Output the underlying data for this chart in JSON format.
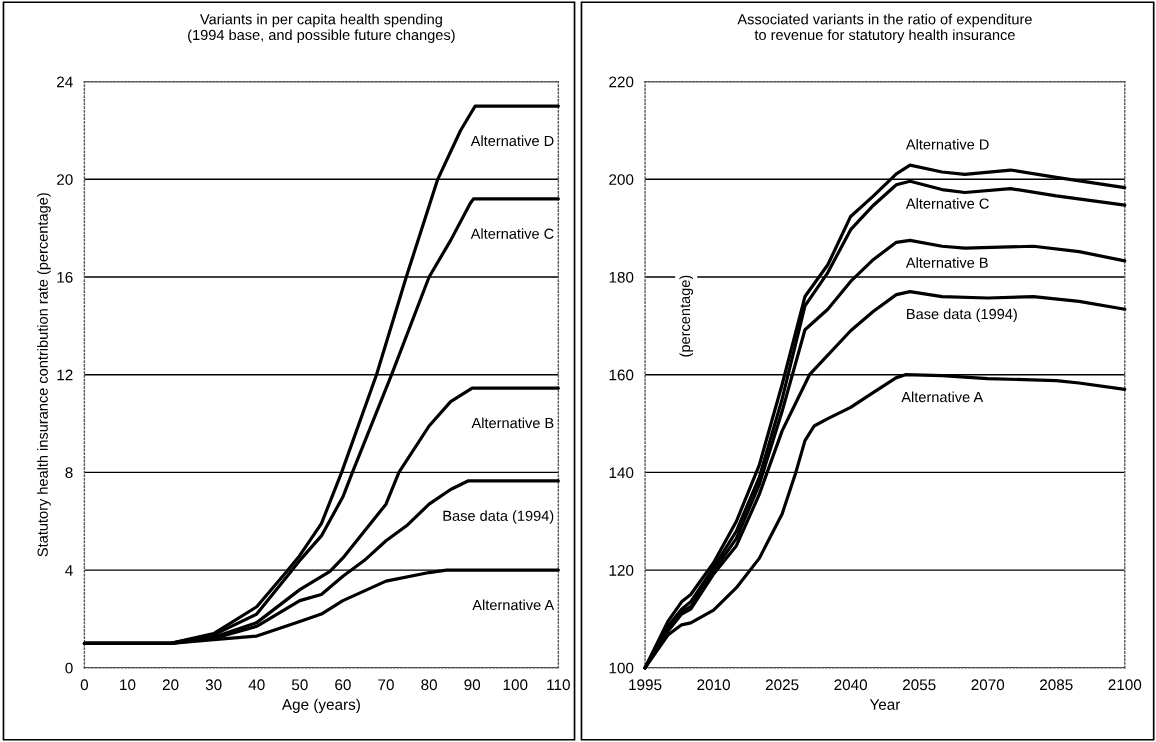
{
  "chart_data": [
    {
      "type": "line",
      "title": "Variants in per capita health spending\n(1994 base, and possible future changes)",
      "xlabel": "Age (years)",
      "ylabel": "Statutory health insurance contribution rate (percentage)",
      "xlim": [
        0,
        110
      ],
      "xticks": [
        0,
        10,
        20,
        30,
        40,
        50,
        60,
        70,
        80,
        90,
        100,
        110
      ],
      "ylim": [
        0,
        24
      ],
      "yticks": [
        0,
        4,
        8,
        12,
        16,
        20,
        24
      ],
      "grid": "y",
      "legend": false,
      "marker": "none",
      "line_style": "solid",
      "series": [
        {
          "name": "Alternative D",
          "color": "#000000",
          "x": [
            0,
            20,
            30,
            40,
            47,
            50,
            55,
            59.7,
            67.8,
            74.7,
            82,
            87.3,
            90.7,
            110
          ],
          "values": [
            1.0,
            1.0,
            1.4,
            2.5,
            3.95,
            4.6,
            5.9,
            8,
            12,
            16,
            20,
            22,
            23,
            23
          ]
        },
        {
          "name": "Alternative C",
          "color": "#000000",
          "x": [
            0,
            20,
            30,
            40,
            48,
            50,
            55,
            60,
            62.2,
            71.3,
            80,
            85,
            89.5,
            90.3,
            110
          ],
          "values": [
            1.0,
            1.0,
            1.35,
            2.2,
            3.95,
            4.4,
            5.4,
            7.0,
            8,
            12,
            16,
            17.5,
            19,
            19.2,
            19.2
          ]
        },
        {
          "name": "Alternative B",
          "color": "#000000",
          "x": [
            0,
            20,
            30,
            40,
            50,
            57,
            60,
            70,
            73,
            80,
            85,
            90,
            110
          ],
          "values": [
            1.0,
            1.0,
            1.25,
            1.85,
            3.2,
            3.95,
            4.5,
            6.7,
            8.0,
            9.9,
            10.9,
            11.45,
            11.45
          ]
        },
        {
          "name": "Base data (1994)",
          "color": "#000000",
          "x": [
            0,
            20,
            30,
            40,
            50,
            55,
            60,
            65,
            70,
            75,
            80,
            85,
            89,
            110
          ],
          "values": [
            1.0,
            1.0,
            1.2,
            1.7,
            2.75,
            3.0,
            3.75,
            4.4,
            5.2,
            5.85,
            6.7,
            7.3,
            7.65,
            7.65
          ]
        },
        {
          "name": "Alternative A",
          "color": "#000000",
          "x": [
            0,
            20,
            30,
            40,
            50,
            55,
            60,
            70,
            80,
            84,
            110
          ],
          "values": [
            1.0,
            1.0,
            1.15,
            1.3,
            1.9,
            2.2,
            2.75,
            3.55,
            3.9,
            4.0,
            4.0
          ]
        }
      ]
    },
    {
      "type": "line",
      "title": "Associated variants in the ratio of expenditure\nto revenue for statutory health insurance",
      "xlabel": "Year",
      "ylabel": "(percentage)",
      "xlim": [
        1995,
        2100
      ],
      "xticks": [
        1995,
        2010,
        2025,
        2040,
        2055,
        2070,
        2085,
        2100
      ],
      "ylim": [
        100,
        220
      ],
      "yticks": [
        100,
        120,
        140,
        160,
        180,
        200,
        220
      ],
      "grid": "y",
      "legend": false,
      "marker": "none",
      "line_style": "solid",
      "series": [
        {
          "name": "Alternative D",
          "color": "#000000",
          "x": [
            1995,
            2000,
            2003,
            2005,
            2010,
            2015,
            2020,
            2025,
            2030,
            2035,
            2040,
            2045,
            2050,
            2053,
            2060,
            2065,
            2075,
            2085,
            2100
          ],
          "values": [
            100,
            109.5,
            113.5,
            115,
            121.5,
            130,
            141.5,
            158,
            176,
            182.5,
            192.4,
            196.6,
            201.1,
            202.9,
            201.5,
            201,
            201.9,
            200.4,
            198.3
          ]
        },
        {
          "name": "Alternative C",
          "color": "#000000",
          "x": [
            1995,
            2000,
            2003,
            2005,
            2010,
            2015,
            2020,
            2025,
            2030,
            2035,
            2040,
            2045,
            2050,
            2053,
            2060,
            2065,
            2075,
            2085,
            2100
          ],
          "values": [
            100,
            108.5,
            112,
            113.5,
            120.5,
            128,
            139,
            155,
            174.1,
            180.9,
            189.7,
            194.7,
            198.9,
            199.6,
            197.9,
            197.3,
            198.1,
            196.6,
            194.7
          ]
        },
        {
          "name": "Alternative B",
          "color": "#000000",
          "x": [
            1995,
            2000,
            2003,
            2005,
            2010,
            2015,
            2020,
            2025,
            2030,
            2035,
            2040,
            2045,
            2050,
            2053,
            2060,
            2065,
            2080,
            2090,
            2100
          ],
          "values": [
            100,
            108,
            111.5,
            112.5,
            119.8,
            126.5,
            137.5,
            152.5,
            169.2,
            173.4,
            179.1,
            183.6,
            187.1,
            187.5,
            186.3,
            185.9,
            186.3,
            185.2,
            183.3
          ]
        },
        {
          "name": "Base data (1994)",
          "color": "#000000",
          "x": [
            1995,
            2000,
            2003,
            2005,
            2010,
            2015,
            2020,
            2025,
            2031,
            2040,
            2045,
            2050,
            2053,
            2060,
            2070,
            2080,
            2090,
            2100
          ],
          "values": [
            100,
            107.5,
            111,
            112,
            119.2,
            125,
            135.5,
            148.5,
            160,
            169,
            173,
            176.4,
            177,
            176,
            175.7,
            176,
            175,
            173.4
          ]
        },
        {
          "name": "Alternative A",
          "color": "#000000",
          "x": [
            1995,
            2000,
            2003,
            2005,
            2010,
            2015,
            2020,
            2025,
            2028,
            2030,
            2032,
            2035,
            2040,
            2045,
            2050,
            2052,
            2060,
            2070,
            2085,
            2090,
            2100
          ],
          "values": [
            100,
            106.7,
            108.8,
            109.2,
            111.8,
            116.4,
            122.4,
            131.5,
            140,
            146.5,
            149.5,
            151,
            153.3,
            156.4,
            159.4,
            160,
            159.8,
            159.2,
            158.8,
            158.3,
            157.0
          ]
        }
      ]
    }
  ]
}
